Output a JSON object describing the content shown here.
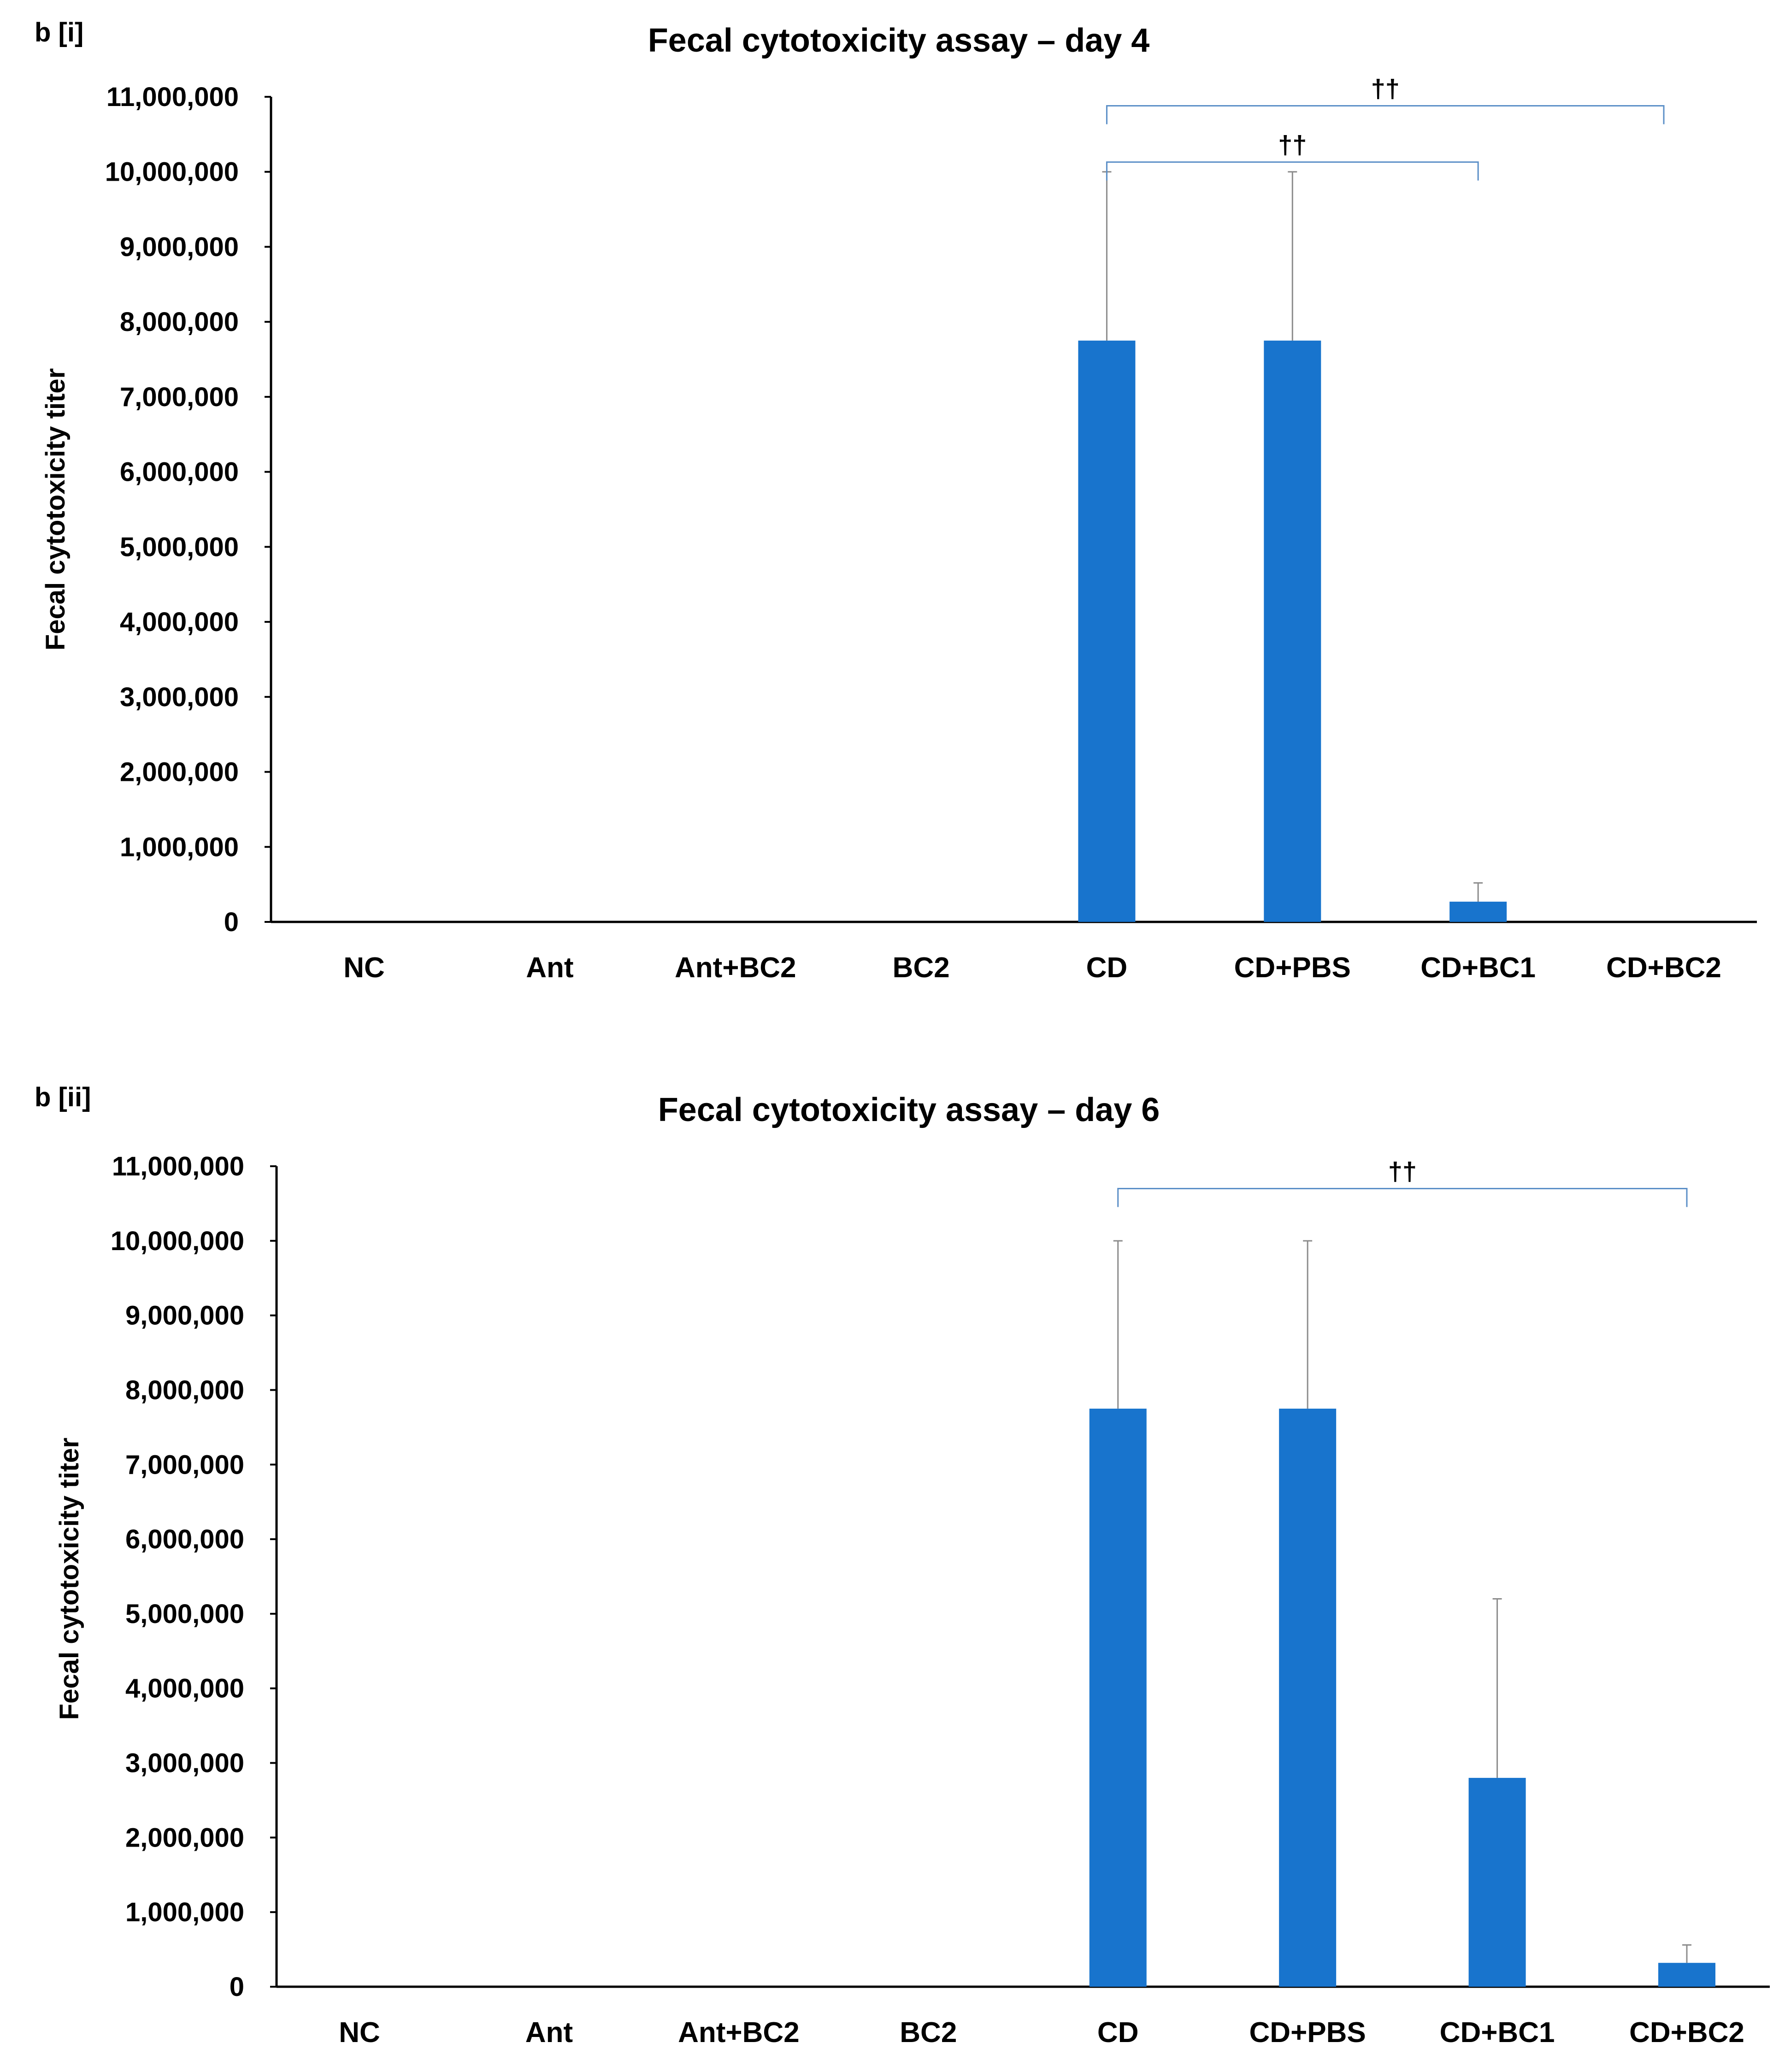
{
  "chart_data": [
    {
      "type": "bar",
      "panel_label": "b [i]",
      "title": "Fecal cytotoxicity assay – day 4",
      "xlabel": "",
      "ylabel": "Fecal cytotoxicity titer",
      "ylim": [
        0,
        11000000
      ],
      "yticks": [
        0,
        1000000,
        2000000,
        3000000,
        4000000,
        5000000,
        6000000,
        7000000,
        8000000,
        9000000,
        10000000,
        11000000
      ],
      "ytick_labels": [
        "0",
        "1,000,000",
        "2,000,000",
        "3,000,000",
        "4,000,000",
        "5,000,000",
        "6,000,000",
        "7,000,000",
        "8,000,000",
        "9,000,000",
        "10,000,000",
        "11,000,000"
      ],
      "grid": false,
      "categories": [
        "NC",
        "Ant",
        "Ant+BC2",
        "BC2",
        "CD",
        "CD+PBS",
        "CD+BC1",
        "CD+BC2"
      ],
      "values": [
        0,
        0,
        0,
        0,
        7750000,
        7750000,
        270000,
        0
      ],
      "error_upper": [
        0,
        0,
        0,
        0,
        10000000,
        10000000,
        520000,
        0
      ],
      "color": "#1874cd",
      "significance": [
        {
          "from": "CD",
          "to": "CD+BC1",
          "label": "††",
          "level": 10130000
        },
        {
          "from": "CD",
          "to": "CD+BC2",
          "label": "††",
          "level": 10880000
        }
      ]
    },
    {
      "type": "bar",
      "panel_label": "b [ii]",
      "title": "Fecal cytotoxicity assay – day 6",
      "xlabel": "",
      "ylabel": "Fecal cytotoxicity titer",
      "ylim": [
        0,
        11000000
      ],
      "yticks": [
        0,
        1000000,
        2000000,
        3000000,
        4000000,
        5000000,
        6000000,
        7000000,
        8000000,
        9000000,
        10000000,
        11000000
      ],
      "ytick_labels": [
        "0",
        "1,000,000",
        "2,000,000",
        "3,000,000",
        "4,000,000",
        "5,000,000",
        "6,000,000",
        "7,000,000",
        "8,000,000",
        "9,000,000",
        "10,000,000",
        "11,000,000"
      ],
      "grid": false,
      "categories": [
        "NC",
        "Ant",
        "Ant+BC2",
        "BC2",
        "CD",
        "CD+PBS",
        "CD+BC1",
        "CD+BC2"
      ],
      "values": [
        0,
        0,
        0,
        0,
        7750000,
        7750000,
        2800000,
        320000
      ],
      "error_upper": [
        0,
        0,
        0,
        0,
        10000000,
        10000000,
        5200000,
        560000
      ],
      "color": "#1874cd",
      "significance": [
        {
          "from": "CD",
          "to": "CD+BC2",
          "label": "††",
          "level": 10700000
        }
      ]
    }
  ]
}
